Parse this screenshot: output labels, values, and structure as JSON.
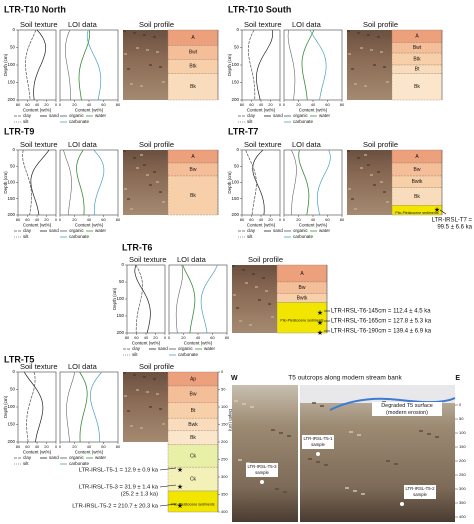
{
  "panels": [
    {
      "title": "LTR-T10 North",
      "horizons": [
        "A",
        "Bwt",
        "Btk",
        "Bk"
      ]
    },
    {
      "title": "LTR-T10 South",
      "horizons": [
        "A",
        "Bwt",
        "Btk",
        "Bt",
        "Bk"
      ]
    },
    {
      "title": "LTR-T9",
      "horizons": [
        "A",
        "Bw",
        "Bk"
      ]
    },
    {
      "title": "LTR-T7",
      "horizons": [
        "A",
        "Bw",
        "Bwtk",
        "Bk"
      ],
      "sediment": "Plio-Pleistocene sediments",
      "dates": [
        "LTR-IRSL-T7 =",
        "99.5 ± 6.6 ka"
      ]
    },
    {
      "title": "LTR-T6",
      "horizons": [
        "A",
        "Bw",
        "Bwtk"
      ],
      "sediment": "Plio-Pleistocene sediments",
      "dates": [
        "LTR-IRSL-T6-145cm = 112.4 ± 4.5 ka",
        "LTR-IRSL-T6-165cm = 127.8 ± 5.3 ka",
        "LTR-IRSL-T6-190cm = 139.4 ± 6.9 ka"
      ]
    },
    {
      "title": "LTR-T5",
      "horizons": [
        "Ap",
        "Bw",
        "Bt",
        "Bwk",
        "Bk",
        "Ck",
        "Ck"
      ],
      "sediment": "Plio-Pleistocene sediments",
      "dates": [
        "LTR-IRSL-T5-1 = 12.9 ± 0.9 ka",
        "LTR-IRSL-T5-3 = 31.9 ± 1.4 ka",
        "(25.2 ± 1.3 ka)",
        "LTR-IRSL-T5-2 = 210.7 ± 20.3 ka"
      ],
      "column_ticks": [
        0,
        50,
        100,
        150,
        200,
        250,
        300,
        350,
        400
      ]
    }
  ],
  "headers": [
    "Soil texture",
    "LOI data",
    "Soil profile"
  ],
  "axes": {
    "depth_label": "Depth (cm)",
    "content_label": "Content (wt%)",
    "texture_legend": [
      "clay",
      "sand",
      "silt"
    ],
    "loi_legend": [
      "organic",
      "water",
      "carbonate"
    ],
    "depth_ticks": [
      0,
      50,
      100,
      150,
      200
    ],
    "texture_ticks": [
      80,
      60,
      40,
      20,
      0
    ],
    "loi_ticks": [
      0,
      20,
      40,
      60,
      80
    ]
  },
  "outcrop": {
    "title": "T5 outcrops along modern stream bank",
    "west": "W",
    "east": "E",
    "surface_label": [
      "Degraded T5 surface",
      "(modern erosion)"
    ],
    "samples": [
      "LTR-IRSL-T5-1",
      "LTR-IRSL-T5-3",
      "LTR-IRSL-T5-2"
    ],
    "sample_word": "sample",
    "depth_ticks": [
      0,
      50,
      100,
      150,
      200,
      250,
      300,
      350,
      400
    ]
  }
}
